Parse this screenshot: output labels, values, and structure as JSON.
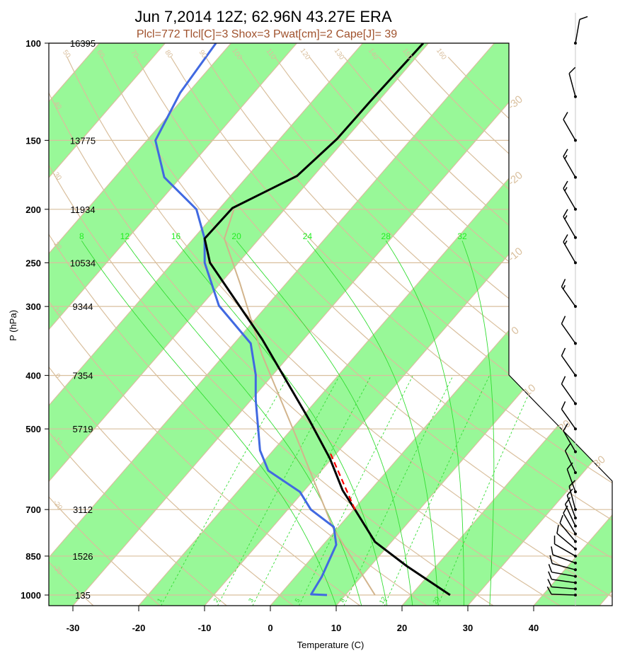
{
  "title": "Jun 7,2014 12Z; 62.96N 43.27E ERA",
  "subtitle": "Plcl=772 Tlcl[C]=3 Shox=3 Pwat[cm]=2 Cape[J]= 39",
  "colors": {
    "band": "#98f898",
    "grid": "#d9bf9d",
    "moist": "#33dd33",
    "temperature": "#000000",
    "dewpoint": "#4169e1",
    "parcel": "#d2b48c",
    "lcl_segment": "#ff0000",
    "subtitle": "#a0522d"
  },
  "chart_data": {
    "type": "skew-t",
    "xlabel": "Temperature (C)",
    "ylabel": "P (hPa)",
    "xticks": [
      -30,
      -20,
      -10,
      0,
      10,
      20,
      30,
      40
    ],
    "ylim_hpa": [
      1046,
      100
    ],
    "pressure_levels": [
      100,
      150,
      200,
      250,
      300,
      400,
      500,
      700,
      850,
      1000
    ],
    "heights_m": [
      16395,
      13775,
      11934,
      10534,
      9344,
      7354,
      5719,
      3112,
      1526,
      135
    ],
    "temperature": [
      {
        "p": 1000,
        "t": 25.9
      },
      {
        "p": 886,
        "t": 15.5
      },
      {
        "p": 801,
        "t": 7.5
      },
      {
        "p": 700,
        "t": 0.2
      },
      {
        "p": 646,
        "t": -4.2
      },
      {
        "p": 566,
        "t": -10.3
      },
      {
        "p": 481,
        "t": -18.6
      },
      {
        "p": 344,
        "t": -36.3
      },
      {
        "p": 250,
        "t": -54.3
      },
      {
        "p": 226,
        "t": -58.3
      },
      {
        "p": 199,
        "t": -58.1
      },
      {
        "p": 174,
        "t": -52.5
      },
      {
        "p": 149,
        "t": -51.3
      },
      {
        "p": 127,
        "t": -51.2
      },
      {
        "p": 100,
        "t": -50.8
      }
    ],
    "dewpoint": [
      {
        "p": 1000,
        "t": 7.2
      },
      {
        "p": 997,
        "t": 4.7
      },
      {
        "p": 926,
        "t": 4.0
      },
      {
        "p": 811,
        "t": 2.0
      },
      {
        "p": 753,
        "t": -0.7
      },
      {
        "p": 700,
        "t": -6.5
      },
      {
        "p": 650,
        "t": -10.5
      },
      {
        "p": 595,
        "t": -18.1
      },
      {
        "p": 547,
        "t": -22.0
      },
      {
        "p": 443,
        "t": -29.3
      },
      {
        "p": 399,
        "t": -32.6
      },
      {
        "p": 350,
        "t": -37.5
      },
      {
        "p": 299,
        "t": -47.3
      },
      {
        "p": 250,
        "t": -55.1
      },
      {
        "p": 226,
        "t": -58.3
      },
      {
        "p": 200,
        "t": -63.4
      },
      {
        "p": 175,
        "t": -72.5
      },
      {
        "p": 150,
        "t": -78.7
      },
      {
        "p": 123,
        "t": -81.2
      },
      {
        "p": 100,
        "t": -82.3
      }
    ],
    "parcel": [
      {
        "p": 1000,
        "t": 14.5
      },
      {
        "p": 753,
        "t": -0.9
      },
      {
        "p": 520,
        "t": -18.0
      },
      {
        "p": 366,
        "t": -34.4
      },
      {
        "p": 272,
        "t": -47.1
      },
      {
        "p": 226,
        "t": -55.3
      },
      {
        "p": 200,
        "t": -57.7
      }
    ],
    "lcl_segment": [
      {
        "p": 700,
        "t": 0.2
      },
      {
        "p": 547,
        "t": -11.5
      }
    ],
    "dry_adiabats_c": [
      -30,
      -20,
      -10,
      0,
      10,
      20,
      30,
      40,
      50,
      60,
      70,
      80,
      90,
      100,
      110,
      120,
      130,
      140,
      150,
      160
    ],
    "moist_adiabats_c": [
      8,
      12,
      16,
      20,
      24,
      28,
      32
    ],
    "mixing_ratios_gkg": [
      1,
      2,
      3,
      5,
      8,
      12,
      20
    ],
    "isotherm_labels": [
      -30,
      -20,
      -10,
      0,
      10,
      20,
      30
    ],
    "wind": [
      {
        "p": 100,
        "dir": 10,
        "spd": 10
      },
      {
        "p": 125,
        "dir": 345,
        "spd": 10
      },
      {
        "p": 150,
        "dir": 330,
        "spd": 10
      },
      {
        "p": 175,
        "dir": 330,
        "spd": 15
      },
      {
        "p": 200,
        "dir": 330,
        "spd": 15
      },
      {
        "p": 225,
        "dir": 330,
        "spd": 15
      },
      {
        "p": 250,
        "dir": 330,
        "spd": 15
      },
      {
        "p": 300,
        "dir": 325,
        "spd": 15
      },
      {
        "p": 350,
        "dir": 325,
        "spd": 10
      },
      {
        "p": 400,
        "dir": 325,
        "spd": 10
      },
      {
        "p": 450,
        "dir": 325,
        "spd": 10
      },
      {
        "p": 500,
        "dir": 325,
        "spd": 10
      },
      {
        "p": 550,
        "dir": 330,
        "spd": 10
      },
      {
        "p": 600,
        "dir": 335,
        "spd": 10
      },
      {
        "p": 650,
        "dir": 340,
        "spd": 10
      },
      {
        "p": 700,
        "dir": 345,
        "spd": 10
      },
      {
        "p": 725,
        "dir": 340,
        "spd": 10
      },
      {
        "p": 750,
        "dir": 335,
        "spd": 10
      },
      {
        "p": 775,
        "dir": 330,
        "spd": 10
      },
      {
        "p": 800,
        "dir": 320,
        "spd": 10
      },
      {
        "p": 825,
        "dir": 310,
        "spd": 10
      },
      {
        "p": 850,
        "dir": 300,
        "spd": 10
      },
      {
        "p": 875,
        "dir": 290,
        "spd": 10
      },
      {
        "p": 900,
        "dir": 285,
        "spd": 10
      },
      {
        "p": 925,
        "dir": 280,
        "spd": 10
      },
      {
        "p": 950,
        "dir": 278,
        "spd": 10
      },
      {
        "p": 975,
        "dir": 275,
        "spd": 10
      },
      {
        "p": 1000,
        "dir": 272,
        "spd": 10
      }
    ]
  }
}
